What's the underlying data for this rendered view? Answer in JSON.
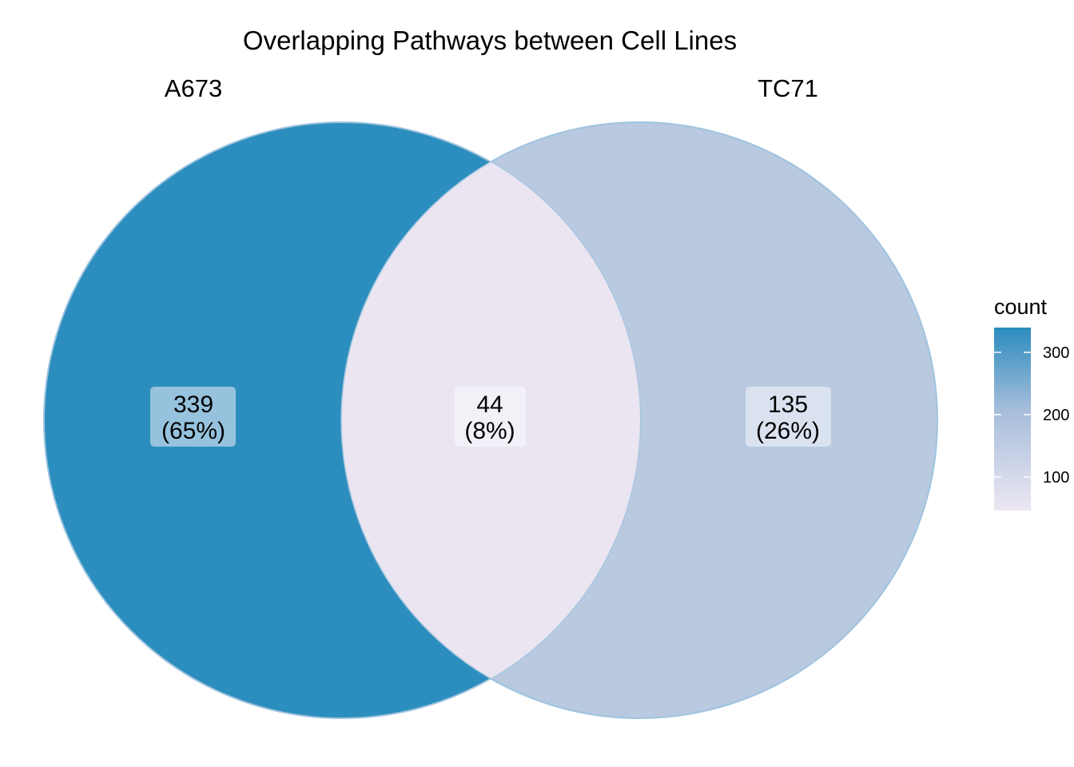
{
  "diagram": {
    "title": "Overlapping Pathways between Cell Lines",
    "sets": [
      {
        "name": "A673",
        "fill": "#2c8ebe"
      },
      {
        "name": "TC71",
        "fill": "#b8c9e0"
      }
    ],
    "regions": [
      {
        "id": "a673-only",
        "count": "339",
        "percent": "(65%)",
        "label_bg": "#96c2dd"
      },
      {
        "id": "intersection",
        "count": "44",
        "percent": "(8%)",
        "fill": "#eae5f1",
        "label_bg": "#f3f1f8"
      },
      {
        "id": "tc71-only",
        "count": "135",
        "percent": "(26%)",
        "label_bg": "#dbe2ef"
      }
    ],
    "outline_color": "#9fc4df"
  },
  "legend": {
    "title": "count",
    "ticks": [
      "300",
      "200",
      "100"
    ],
    "gradient": {
      "low": "#ece7f2",
      "mid": "#a6bddb",
      "high": "#2b8cbe"
    }
  }
}
